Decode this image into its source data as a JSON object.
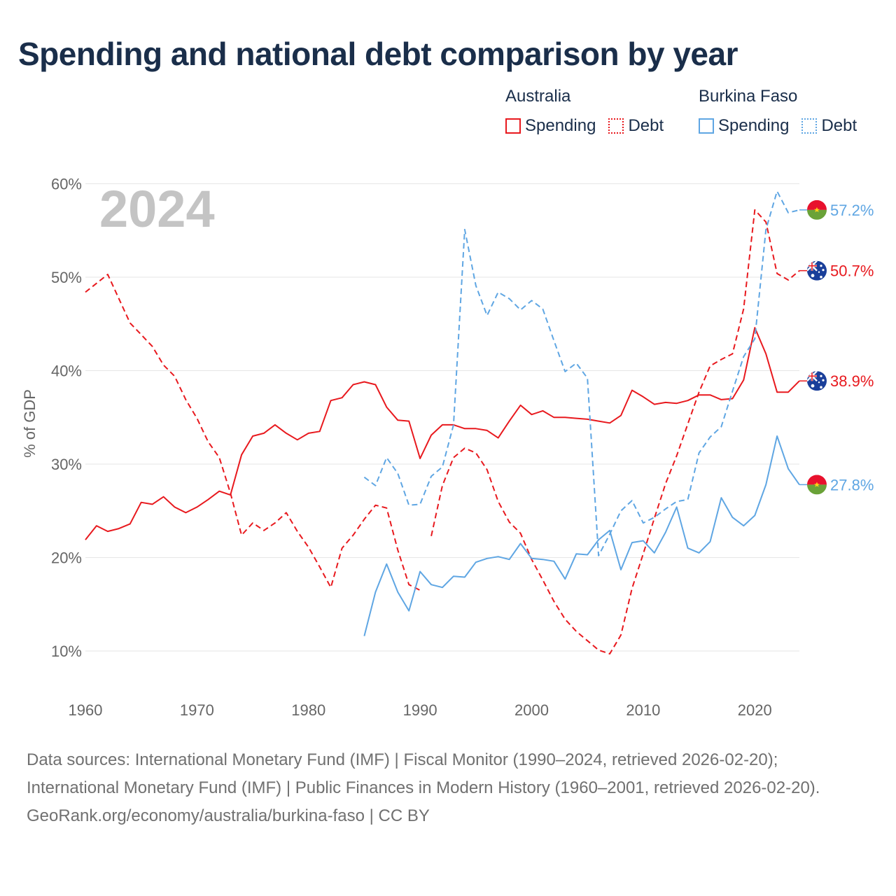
{
  "title": "Spending and national debt comparison by year",
  "legend": {
    "australia": {
      "country": "Australia",
      "spending": "Spending",
      "debt": "Debt"
    },
    "burkina": {
      "country": "Burkina Faso",
      "spending": "Spending",
      "debt": "Debt"
    }
  },
  "year_watermark": "2024",
  "colors": {
    "australia": "#e8191e",
    "burkina": "#5fa6e3",
    "grid": "#e6e6e6",
    "axis_text": "#666666"
  },
  "footer": {
    "sources": "Data sources: International Monetary Fund (IMF) | Fiscal Monitor (1990–2024, retrieved 2026-02-20); International Monetary Fund (IMF) | Public Finances in Modern History (1960–2001, retrieved 2026-02-20).",
    "url": "GeoRank.org/economy/australia/burkina-faso | CC BY"
  },
  "chart_data": {
    "type": "line",
    "title": "Spending and national debt comparison by year",
    "xlabel": "",
    "ylabel": "% of GDP",
    "xlim": [
      1960,
      2024
    ],
    "ylim": [
      5,
      60
    ],
    "x_ticks": [
      1960,
      1970,
      1980,
      1990,
      2000,
      2010,
      2020
    ],
    "x_tick_labels": [
      "1960",
      "1970",
      "1980",
      "1990",
      "2000",
      "2010",
      "2020"
    ],
    "y_ticks": [
      10,
      20,
      30,
      40,
      50,
      60
    ],
    "y_tick_labels": [
      "10%",
      "20%",
      "30%",
      "40%",
      "50%",
      "60%"
    ],
    "grid": true,
    "series": [
      {
        "name": "Australia Debt",
        "country": "australia",
        "style": "dashed",
        "end_label": "50.7%",
        "points": [
          [
            1960,
            48.4
          ],
          [
            1962,
            50.3
          ],
          [
            1964,
            45.1
          ],
          [
            1966,
            42.6
          ],
          [
            1967,
            40.6
          ],
          [
            1968,
            39.4
          ],
          [
            1969,
            36.9
          ],
          [
            1970,
            34.9
          ],
          [
            1971,
            32.4
          ],
          [
            1972,
            30.7
          ],
          [
            1973,
            26.9
          ],
          [
            1974,
            22.4
          ],
          [
            1975,
            23.7
          ],
          [
            1976,
            22.9
          ],
          [
            1977,
            23.7
          ],
          [
            1978,
            24.8
          ],
          [
            1979,
            22.8
          ],
          [
            1980,
            21.1
          ],
          [
            1981,
            19.0
          ],
          [
            1982,
            16.8
          ],
          [
            1983,
            21.0
          ],
          [
            1984,
            22.4
          ],
          [
            1985,
            24.1
          ],
          [
            1986,
            25.6
          ],
          [
            1987,
            25.3
          ],
          [
            1988,
            20.8
          ],
          [
            1989,
            17.1
          ],
          [
            1990,
            16.5
          ],
          null,
          [
            1991,
            22.3
          ],
          [
            1992,
            27.7
          ],
          [
            1993,
            30.7
          ],
          [
            1994,
            31.7
          ],
          [
            1995,
            31.2
          ],
          [
            1996,
            29.4
          ],
          [
            1997,
            26.0
          ],
          [
            1998,
            23.8
          ],
          [
            1999,
            22.6
          ],
          [
            2000,
            19.8
          ],
          [
            2001,
            17.6
          ],
          [
            2002,
            15.3
          ],
          [
            2003,
            13.4
          ],
          [
            2004,
            12.1
          ],
          [
            2005,
            11.1
          ],
          [
            2006,
            10.1
          ],
          [
            2007,
            9.7
          ],
          [
            2008,
            11.7
          ],
          [
            2009,
            16.7
          ],
          [
            2010,
            20.4
          ],
          [
            2011,
            24.2
          ],
          [
            2012,
            27.9
          ],
          [
            2013,
            30.9
          ],
          [
            2014,
            34.3
          ],
          [
            2015,
            37.7
          ],
          [
            2016,
            40.5
          ],
          [
            2017,
            41.2
          ],
          [
            2018,
            41.8
          ],
          [
            2019,
            46.6
          ],
          [
            2020,
            57.2
          ],
          [
            2021,
            55.9
          ],
          [
            2022,
            50.4
          ],
          [
            2023,
            49.7
          ],
          [
            2024,
            50.7
          ]
        ]
      },
      {
        "name": "Australia Spending",
        "country": "australia",
        "style": "solid",
        "end_label": "38.9%",
        "points": [
          [
            1960,
            21.9
          ],
          [
            1961,
            23.4
          ],
          [
            1962,
            22.8
          ],
          [
            1963,
            23.1
          ],
          [
            1964,
            23.6
          ],
          [
            1965,
            25.9
          ],
          [
            1966,
            25.7
          ],
          [
            1967,
            26.5
          ],
          [
            1968,
            25.4
          ],
          [
            1969,
            24.8
          ],
          [
            1970,
            25.4
          ],
          [
            1971,
            26.2
          ],
          [
            1972,
            27.1
          ],
          [
            1973,
            26.7
          ],
          [
            1974,
            31.0
          ],
          [
            1975,
            33.0
          ],
          [
            1976,
            33.3
          ],
          [
            1977,
            34.2
          ],
          [
            1978,
            33.3
          ],
          [
            1979,
            32.6
          ],
          [
            1980,
            33.3
          ],
          [
            1981,
            33.5
          ],
          [
            1982,
            36.8
          ],
          [
            1983,
            37.1
          ],
          [
            1984,
            38.5
          ],
          [
            1985,
            38.8
          ],
          [
            1986,
            38.5
          ],
          [
            1987,
            36.1
          ],
          [
            1988,
            34.7
          ],
          [
            1989,
            34.6
          ],
          [
            1990,
            30.6
          ],
          [
            1991,
            33.1
          ],
          [
            1992,
            34.2
          ],
          [
            1993,
            34.2
          ],
          [
            1994,
            33.8
          ],
          [
            1995,
            33.8
          ],
          [
            1996,
            33.6
          ],
          [
            1997,
            32.8
          ],
          [
            1998,
            34.6
          ],
          [
            1999,
            36.3
          ],
          [
            2000,
            35.3
          ],
          [
            2001,
            35.7
          ],
          [
            2002,
            35.0
          ],
          [
            2003,
            35.0
          ],
          [
            2004,
            34.9
          ],
          [
            2005,
            34.8
          ],
          [
            2006,
            34.6
          ],
          [
            2007,
            34.4
          ],
          [
            2008,
            35.2
          ],
          [
            2009,
            37.9
          ],
          [
            2010,
            37.2
          ],
          [
            2011,
            36.4
          ],
          [
            2012,
            36.6
          ],
          [
            2013,
            36.5
          ],
          [
            2014,
            36.8
          ],
          [
            2015,
            37.4
          ],
          [
            2016,
            37.4
          ],
          [
            2017,
            36.9
          ],
          [
            2018,
            37.0
          ],
          [
            2019,
            39.0
          ],
          [
            2020,
            44.6
          ],
          [
            2021,
            41.8
          ],
          [
            2022,
            37.7
          ],
          [
            2023,
            37.7
          ],
          [
            2024,
            38.9
          ]
        ]
      },
      {
        "name": "Burkina Faso Debt",
        "country": "burkina",
        "style": "dashed",
        "end_label": "57.2%",
        "points": [
          [
            1985,
            28.6
          ],
          [
            1986,
            27.7
          ],
          [
            1987,
            30.7
          ],
          [
            1988,
            29.0
          ],
          [
            1989,
            25.6
          ],
          [
            1990,
            25.7
          ],
          [
            1991,
            28.7
          ],
          [
            1992,
            29.7
          ],
          [
            1993,
            34.2
          ],
          [
            1994,
            55.1
          ],
          [
            1995,
            49.1
          ],
          [
            1996,
            45.9
          ],
          [
            1997,
            48.4
          ],
          [
            1998,
            47.7
          ],
          [
            1999,
            46.5
          ],
          [
            2000,
            47.5
          ],
          [
            2001,
            46.6
          ],
          [
            2002,
            43.2
          ],
          [
            2003,
            39.9
          ],
          [
            2004,
            40.8
          ],
          [
            2005,
            39.2
          ],
          [
            2006,
            20.2
          ],
          [
            2007,
            22.5
          ],
          [
            2008,
            25.0
          ],
          [
            2009,
            26.1
          ],
          [
            2010,
            23.7
          ],
          [
            2011,
            24.3
          ],
          [
            2012,
            25.2
          ],
          [
            2013,
            26.0
          ],
          [
            2014,
            26.2
          ],
          [
            2015,
            31.2
          ],
          [
            2016,
            32.9
          ],
          [
            2017,
            34.0
          ],
          [
            2018,
            37.8
          ],
          [
            2019,
            41.5
          ],
          [
            2020,
            43.4
          ],
          [
            2021,
            55.1
          ],
          [
            2022,
            59.2
          ],
          [
            2023,
            56.9
          ],
          [
            2024,
            57.2
          ]
        ]
      },
      {
        "name": "Burkina Faso Spending",
        "country": "burkina",
        "style": "solid",
        "end_label": "27.8%",
        "points": [
          [
            1985,
            11.6
          ],
          [
            1986,
            16.3
          ],
          [
            1987,
            19.3
          ],
          [
            1988,
            16.3
          ],
          [
            1989,
            14.3
          ],
          [
            1990,
            18.5
          ],
          [
            1991,
            17.1
          ],
          [
            1992,
            16.8
          ],
          [
            1993,
            18.0
          ],
          [
            1994,
            17.9
          ],
          [
            1995,
            19.5
          ],
          [
            1996,
            19.9
          ],
          [
            1997,
            20.1
          ],
          [
            1998,
            19.8
          ],
          [
            1999,
            21.5
          ],
          [
            2000,
            19.9
          ],
          [
            2001,
            19.8
          ],
          [
            2002,
            19.6
          ],
          [
            2003,
            17.7
          ],
          [
            2004,
            20.4
          ],
          [
            2005,
            20.3
          ],
          [
            2006,
            21.9
          ],
          [
            2007,
            22.9
          ],
          [
            2008,
            18.7
          ],
          [
            2009,
            21.6
          ],
          [
            2010,
            21.8
          ],
          [
            2011,
            20.5
          ],
          [
            2012,
            22.7
          ],
          [
            2013,
            25.4
          ],
          [
            2014,
            21.0
          ],
          [
            2015,
            20.5
          ],
          [
            2016,
            21.7
          ],
          [
            2017,
            26.4
          ],
          [
            2018,
            24.3
          ],
          [
            2019,
            23.4
          ],
          [
            2020,
            24.5
          ],
          [
            2021,
            27.8
          ],
          [
            2022,
            33.0
          ],
          [
            2023,
            29.5
          ],
          [
            2024,
            27.8
          ]
        ]
      }
    ]
  }
}
